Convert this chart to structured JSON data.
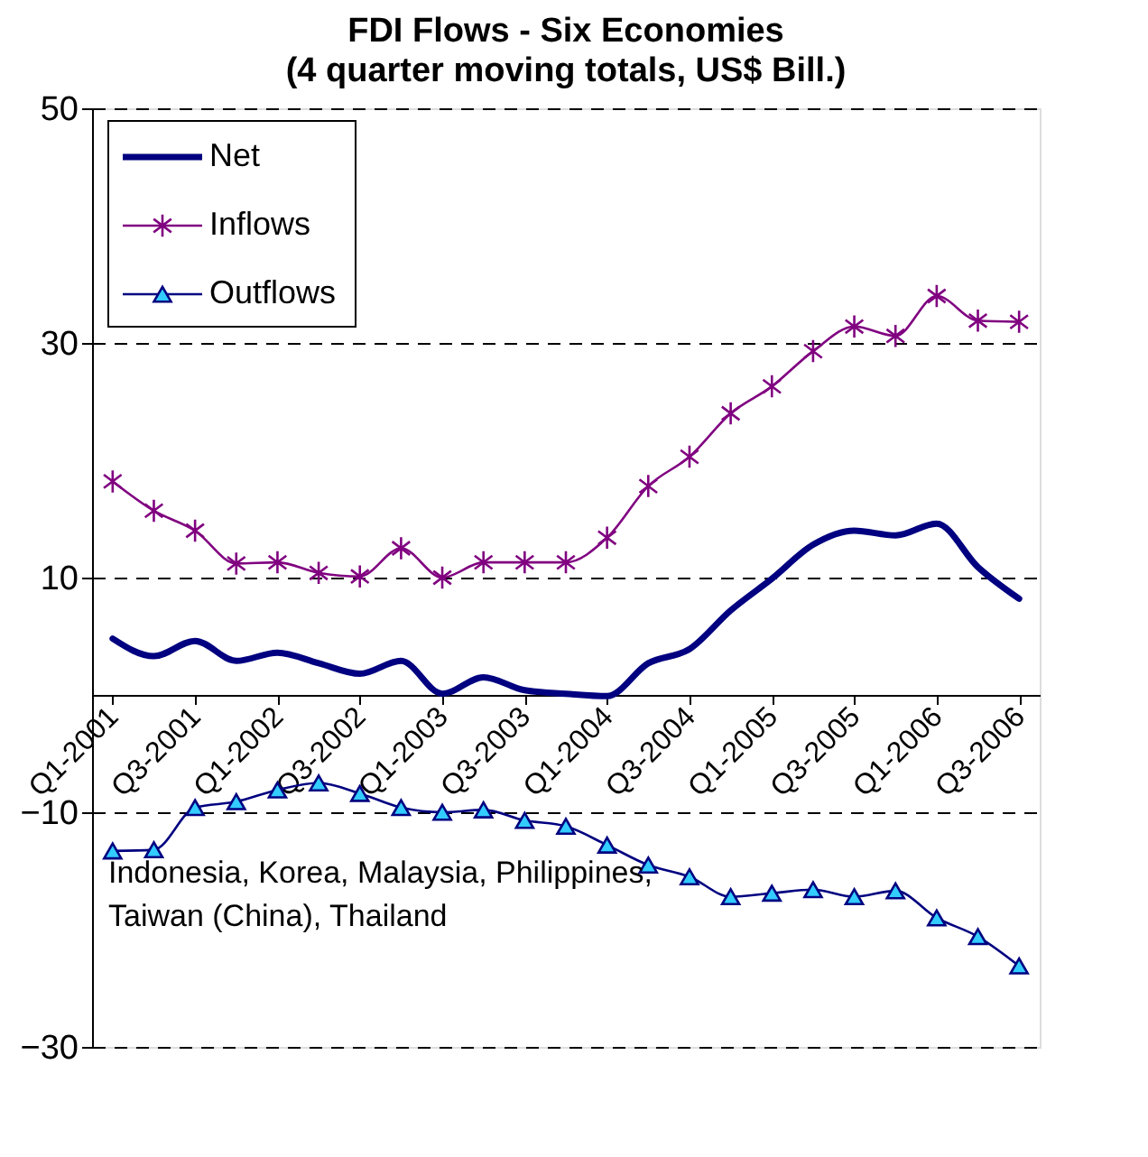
{
  "chart_data": {
    "type": "line",
    "title": "FDI Flows - Six Economies",
    "subtitle": "(4 quarter moving totals, US$ Bill.)",
    "categories": [
      "Q1-2001",
      null,
      "Q3-2001",
      null,
      "Q1-2002",
      null,
      "Q3-2002",
      null,
      "Q1-2003",
      null,
      "Q3-2003",
      null,
      "Q1-2004",
      null,
      "Q3-2004",
      null,
      "Q1-2005",
      null,
      "Q3-2005",
      null,
      "Q1-2006",
      null,
      "Q3-2006"
    ],
    "series": [
      {
        "name": "Net",
        "color": "#000080",
        "marker": "none",
        "values": [
          4.8,
          3.3,
          4.6,
          2.9,
          3.6,
          2.7,
          1.8,
          2.9,
          0.1,
          1.5,
          0.4,
          0.1,
          -0.1,
          2.7,
          3.9,
          7.2,
          9.9,
          12.8,
          14.0,
          13.6,
          14.6,
          10.9,
          8.2
        ]
      },
      {
        "name": "Inflows",
        "color": "#800080",
        "marker": "cross",
        "values": [
          18.2,
          15.7,
          14.0,
          11.2,
          11.3,
          10.4,
          10.1,
          12.5,
          10.0,
          11.3,
          11.3,
          11.3,
          13.4,
          17.8,
          20.3,
          24.0,
          26.3,
          29.3,
          31.4,
          30.6,
          34.0,
          31.9,
          31.8
        ]
      },
      {
        "name": "Outflows",
        "color": "#000080",
        "marker": "triangle",
        "values": [
          -13.3,
          -13.2,
          -9.6,
          -9.1,
          -8.1,
          -7.5,
          -8.4,
          -9.6,
          -10.0,
          -9.8,
          -10.7,
          -11.2,
          -12.8,
          -14.5,
          -15.5,
          -17.2,
          -16.9,
          -16.6,
          -17.2,
          -16.7,
          -19.0,
          -20.6,
          -23.1
        ]
      }
    ],
    "ylim": [
      -30,
      50
    ],
    "yticks": [
      -30,
      -10,
      10,
      30,
      50
    ],
    "grid": "y",
    "legend": "top left",
    "annotations": [
      "Indonesia, Korea, Malaysia, Philippines,\nTaiwan (China), Thailand"
    ]
  }
}
